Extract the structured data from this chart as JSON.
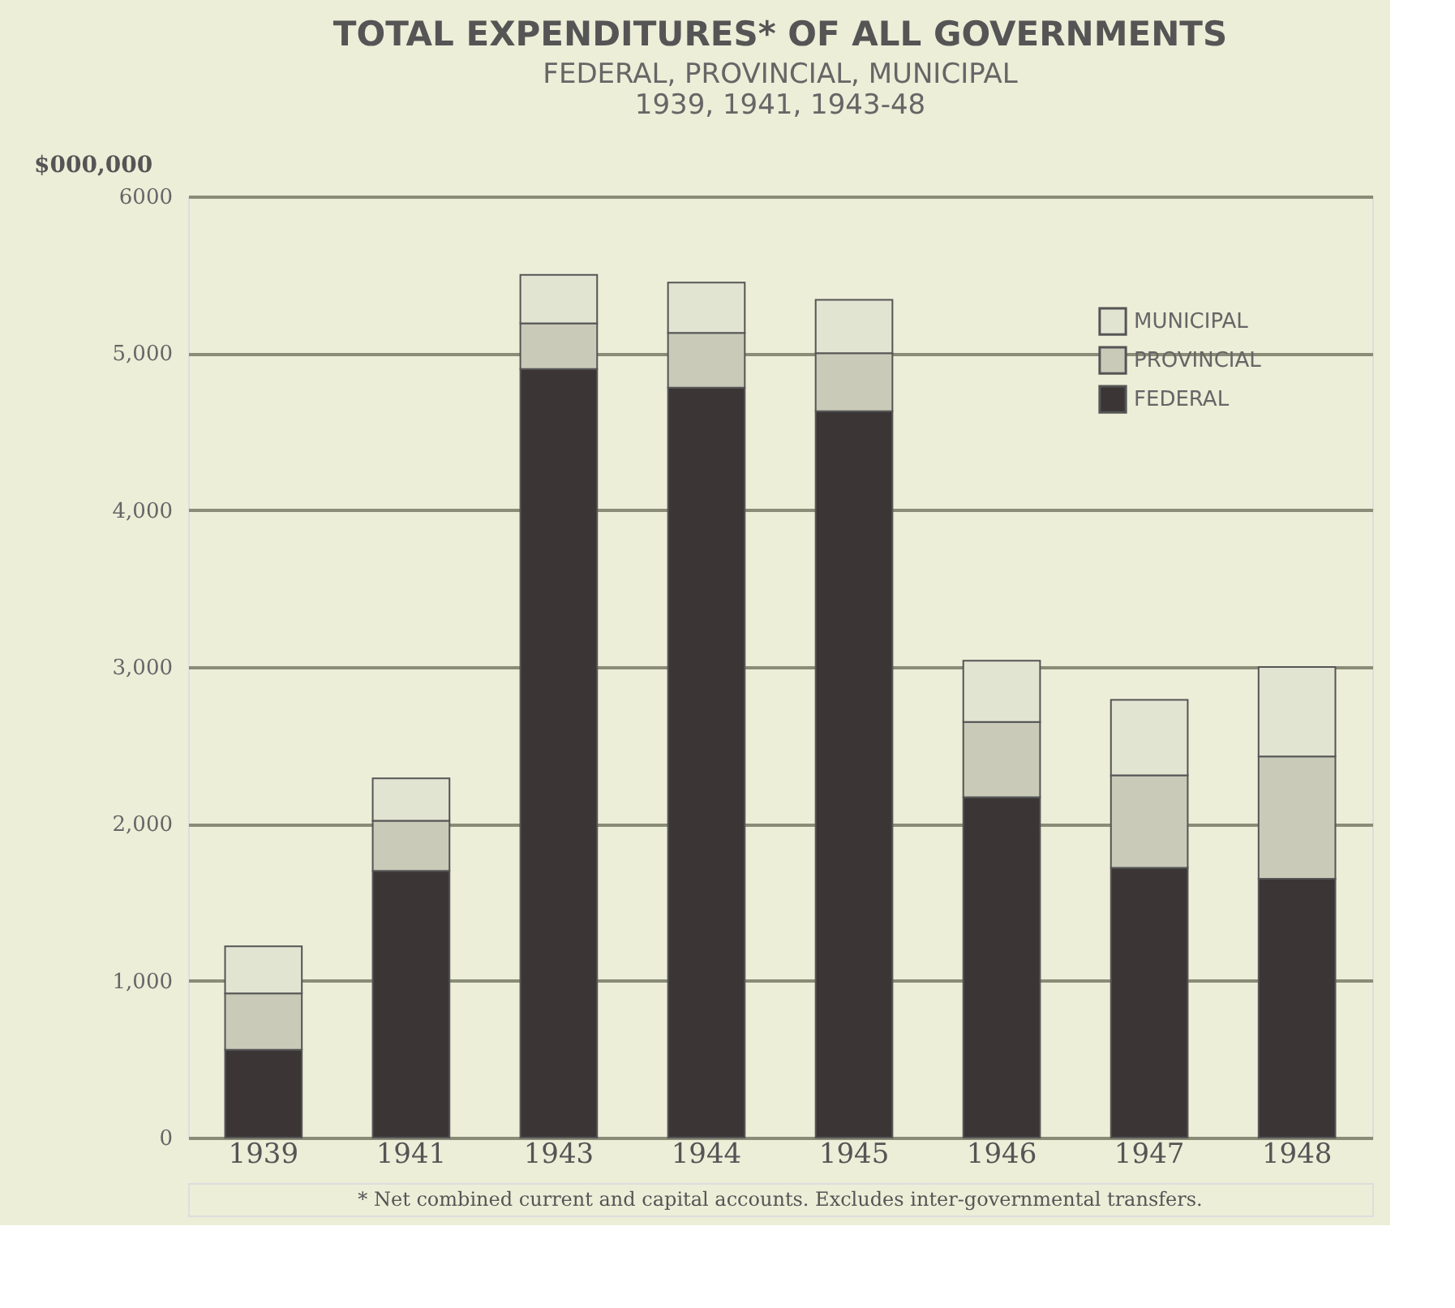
{
  "chart_data": {
    "type": "bar",
    "stacked": true,
    "title": "TOTAL EXPENDITURES* OF ALL GOVERNMENTS",
    "subtitle": "FEDERAL, PROVINCIAL, MUNICIPAL\n1939, 1941, 1943-48",
    "ylabel": "$000,000",
    "categories": [
      "1939",
      "1941",
      "1943",
      "1944",
      "1945",
      "1946",
      "1947",
      "1948"
    ],
    "series": [
      {
        "name": "FEDERAL",
        "color": "#3b3536",
        "values": [
          560,
          1700,
          4900,
          4780,
          4630,
          2170,
          1720,
          1650
        ]
      },
      {
        "name": "PROVINCIAL",
        "color": "#c9cab8",
        "values": [
          360,
          320,
          290,
          350,
          370,
          480,
          590,
          780
        ]
      },
      {
        "name": "MUNICIPAL",
        "color": "#e2e4d2",
        "values": [
          300,
          270,
          310,
          320,
          340,
          390,
          480,
          570
        ]
      }
    ],
    "ylim": [
      0,
      6000
    ],
    "yticks": [
      0,
      {
        "value": 1000,
        "label": "1,000"
      },
      {
        "value": 2000,
        "label": "2,000"
      },
      {
        "value": 3000,
        "label": "3,000"
      },
      {
        "value": 4000,
        "label": "4,000"
      },
      {
        "value": 5000,
        "label": "5,000"
      },
      6000
    ],
    "grid": "y",
    "legend": "top right",
    "annotations": [
      "* Net combined current and capital accounts. Excludes inter-governmental transfers."
    ]
  }
}
